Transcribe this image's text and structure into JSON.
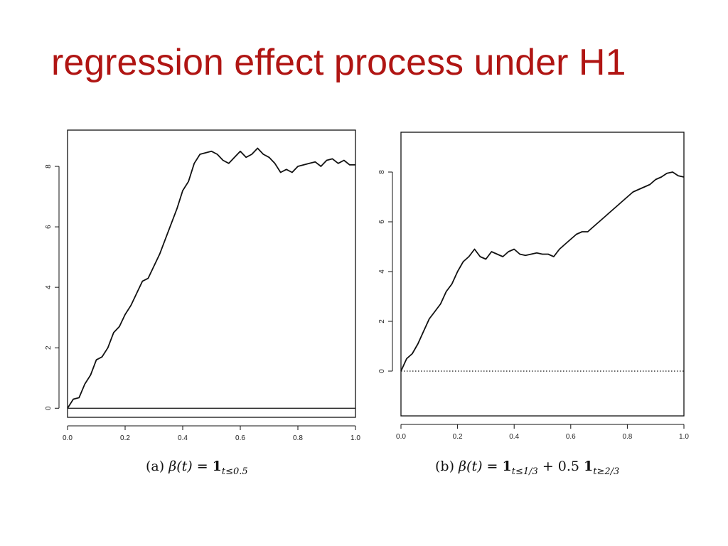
{
  "title": "regression effect process under H1",
  "colors": {
    "title": "#b01513",
    "line": "#111111",
    "axis": "#111111"
  },
  "chart_data": [
    {
      "type": "line",
      "panel": "a",
      "caption": {
        "label": "(a)",
        "lhs": "β(t) = ",
        "one": "1",
        "sub": "t≤0.5"
      },
      "xlim": [
        0,
        1
      ],
      "ylim": [
        -0.3,
        9.2
      ],
      "xticks": [
        0.0,
        0.2,
        0.4,
        0.6,
        0.8,
        1.0
      ],
      "xtick_labels": [
        "0.0",
        "0.2",
        "0.4",
        "0.6",
        "0.8",
        "1.0"
      ],
      "yticks": [
        0,
        2,
        4,
        6,
        8
      ],
      "ytick_labels": [
        "0",
        "2",
        "4",
        "6",
        "8"
      ],
      "hline": {
        "y": 0,
        "style": "solid"
      },
      "grid": false,
      "series": [
        {
          "x": [
            0,
            0.02,
            0.04,
            0.06,
            0.08,
            0.1,
            0.12,
            0.14,
            0.16,
            0.18,
            0.2,
            0.22,
            0.24,
            0.26,
            0.28,
            0.3,
            0.32,
            0.34,
            0.36,
            0.38,
            0.4,
            0.42,
            0.44,
            0.46,
            0.48,
            0.5,
            0.52,
            0.54,
            0.56,
            0.58,
            0.6,
            0.62,
            0.64,
            0.66,
            0.68,
            0.7,
            0.72,
            0.74,
            0.76,
            0.78,
            0.8,
            0.82,
            0.84,
            0.86,
            0.88,
            0.9,
            0.92,
            0.94,
            0.96,
            0.98,
            1.0
          ],
          "y": [
            0.0,
            0.3,
            0.35,
            0.8,
            1.1,
            1.6,
            1.7,
            2.0,
            2.5,
            2.7,
            3.1,
            3.4,
            3.8,
            4.2,
            4.3,
            4.7,
            5.1,
            5.6,
            6.1,
            6.6,
            7.2,
            7.5,
            8.1,
            8.4,
            8.45,
            8.5,
            8.4,
            8.2,
            8.1,
            8.3,
            8.5,
            8.3,
            8.4,
            8.6,
            8.4,
            8.3,
            8.1,
            7.8,
            7.9,
            7.8,
            8.0,
            8.05,
            8.1,
            8.15,
            8.0,
            8.2,
            8.25,
            8.1,
            8.2,
            8.05,
            8.05
          ]
        }
      ]
    },
    {
      "type": "line",
      "panel": "b",
      "caption": {
        "label": "(b)",
        "lhs": "β(t) = ",
        "one": "1",
        "sub": "t≤1/3",
        "plus": " + 0.5 ",
        "one2": "1",
        "sub2": "t≥2/3"
      },
      "xlim": [
        0,
        1
      ],
      "ylim": [
        -1.8,
        9.6
      ],
      "xticks": [
        0.0,
        0.2,
        0.4,
        0.6,
        0.8,
        1.0
      ],
      "xtick_labels": [
        "0.0",
        "0.2",
        "0.4",
        "0.6",
        "0.8",
        "1.0"
      ],
      "yticks": [
        0,
        2,
        4,
        6,
        8
      ],
      "ytick_labels": [
        "0",
        "2",
        "4",
        "6",
        "8"
      ],
      "hline": {
        "y": 0,
        "style": "dotted"
      },
      "grid": false,
      "series": [
        {
          "x": [
            0,
            0.02,
            0.04,
            0.06,
            0.08,
            0.1,
            0.12,
            0.14,
            0.16,
            0.18,
            0.2,
            0.22,
            0.24,
            0.26,
            0.28,
            0.3,
            0.32,
            0.34,
            0.36,
            0.38,
            0.4,
            0.42,
            0.44,
            0.46,
            0.48,
            0.5,
            0.52,
            0.54,
            0.56,
            0.58,
            0.6,
            0.62,
            0.64,
            0.66,
            0.68,
            0.7,
            0.72,
            0.74,
            0.76,
            0.78,
            0.8,
            0.82,
            0.84,
            0.86,
            0.88,
            0.9,
            0.92,
            0.94,
            0.96,
            0.98,
            1.0
          ],
          "y": [
            0.0,
            0.5,
            0.7,
            1.1,
            1.6,
            2.1,
            2.4,
            2.7,
            3.2,
            3.5,
            4.0,
            4.4,
            4.6,
            4.9,
            4.6,
            4.5,
            4.8,
            4.7,
            4.6,
            4.8,
            4.9,
            4.7,
            4.65,
            4.7,
            4.75,
            4.7,
            4.7,
            4.6,
            4.9,
            5.1,
            5.3,
            5.5,
            5.6,
            5.6,
            5.8,
            6.0,
            6.2,
            6.4,
            6.6,
            6.8,
            7.0,
            7.2,
            7.3,
            7.4,
            7.5,
            7.7,
            7.8,
            7.95,
            8.0,
            7.85,
            7.8
          ]
        }
      ]
    }
  ]
}
